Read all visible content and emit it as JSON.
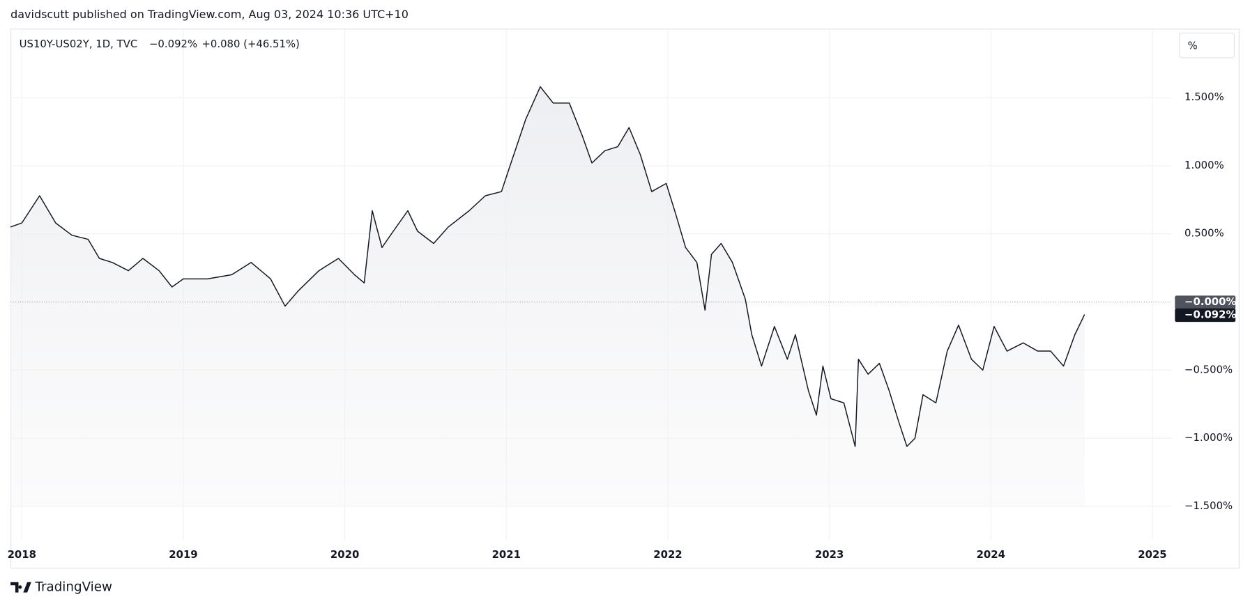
{
  "chart_data": {
    "type": "area-line",
    "header": "davidscutt published on TradingView.com, Aug 03, 2024 10:36 UTC+10",
    "legend": {
      "symbol": "US10Y-US02Y, 1D, TVC",
      "last": "−0.092%",
      "change": "+0.080 (+46.51%)"
    },
    "scale_button": "%",
    "brand": "TradingView",
    "color": "#131722",
    "grid": true,
    "x": [
      2017.93,
      2018.0,
      2018.11,
      2018.21,
      2018.31,
      2018.41,
      2018.48,
      2018.56,
      2018.66,
      2018.75,
      2018.85,
      2018.93,
      2019.0,
      2019.15,
      2019.3,
      2019.42,
      2019.54,
      2019.63,
      2019.71,
      2019.84,
      2019.96,
      2020.06,
      2020.12,
      2020.17,
      2020.23,
      2020.3,
      2020.39,
      2020.45,
      2020.55,
      2020.64,
      2020.77,
      2020.87,
      2020.97,
      2021.02,
      2021.12,
      2021.21,
      2021.29,
      2021.39,
      2021.47,
      2021.53,
      2021.61,
      2021.69,
      2021.76,
      2021.83,
      2021.9,
      2021.99,
      2022.05,
      2022.11,
      2022.18,
      2022.23,
      2022.27,
      2022.33,
      2022.4,
      2022.48,
      2022.52,
      2022.58,
      2022.66,
      2022.74,
      2022.79,
      2022.87,
      2022.92,
      2022.96,
      2023.01,
      2023.09,
      2023.16,
      2023.18,
      2023.24,
      2023.31,
      2023.37,
      2023.43,
      2023.48,
      2023.53,
      2023.58,
      2023.66,
      2023.73,
      2023.8,
      2023.88,
      2023.95,
      2024.02,
      2024.1,
      2024.2,
      2024.29,
      2024.37,
      2024.45,
      2024.52,
      2024.58
    ],
    "values": [
      0.55,
      0.58,
      0.78,
      0.58,
      0.49,
      0.46,
      0.32,
      0.29,
      0.23,
      0.32,
      0.23,
      0.11,
      0.17,
      0.17,
      0.2,
      0.29,
      0.17,
      -0.03,
      0.08,
      0.23,
      0.32,
      0.2,
      0.14,
      0.67,
      0.4,
      0.52,
      0.67,
      0.52,
      0.43,
      0.55,
      0.67,
      0.78,
      0.81,
      0.99,
      1.34,
      1.58,
      1.46,
      1.46,
      1.22,
      1.02,
      1.11,
      1.14,
      1.28,
      1.08,
      0.81,
      0.87,
      0.64,
      0.4,
      0.29,
      -0.06,
      0.35,
      0.43,
      0.29,
      0.02,
      -0.24,
      -0.47,
      -0.18,
      -0.42,
      -0.24,
      -0.65,
      -0.83,
      -0.47,
      -0.71,
      -0.74,
      -1.06,
      -0.42,
      -0.53,
      -0.45,
      -0.65,
      -0.88,
      -1.06,
      -1.0,
      -0.68,
      -0.74,
      -0.36,
      -0.17,
      -0.42,
      -0.5,
      -0.18,
      -0.36,
      -0.3,
      -0.36,
      -0.36,
      -0.47,
      -0.24,
      -0.092
    ],
    "xlim": [
      2017.93,
      2025.12
    ],
    "xticks": [
      2018,
      2019,
      2020,
      2021,
      2022,
      2023,
      2024,
      2025
    ],
    "ylim": [
      -1.74,
      2.0
    ],
    "yticks": [
      {
        "value": 1.5,
        "label": "1.500%"
      },
      {
        "value": 1.0,
        "label": "1.000%"
      },
      {
        "value": 0.5,
        "label": "0.500%"
      },
      {
        "value": -0.5,
        "label": "−0.500%"
      },
      {
        "value": -1.0,
        "label": "−1.000%"
      },
      {
        "value": -1.5,
        "label": "−1.500%"
      }
    ],
    "price_lines": [
      {
        "value": 0,
        "label": "−0.000%",
        "color": "#50535e"
      },
      {
        "value": -0.092,
        "label": "−0.092%",
        "color": "#131722"
      }
    ]
  }
}
